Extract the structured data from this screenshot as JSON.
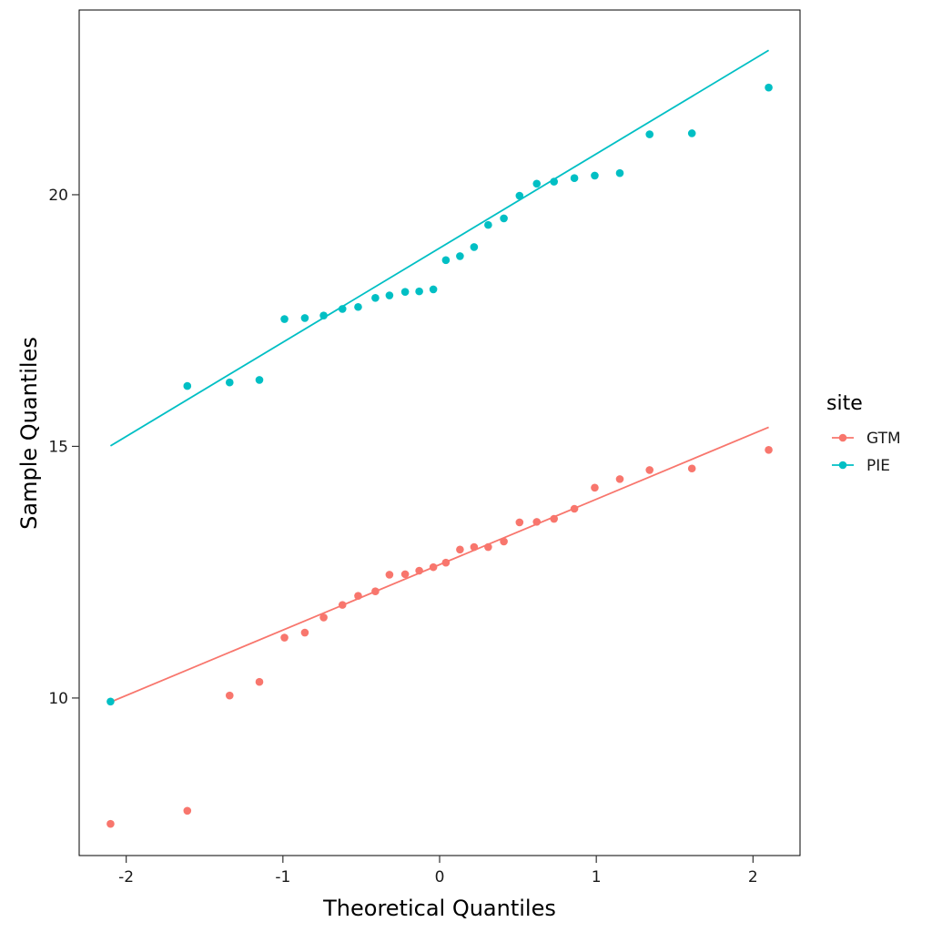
{
  "chart_data": {
    "type": "scatter",
    "xlabel": "Theoretical Quantiles",
    "ylabel": "Sample Quantiles",
    "xlim": [
      -2.3,
      2.3
    ],
    "ylim": [
      6.87,
      23.67
    ],
    "x_ticks": [
      -2,
      -1,
      0,
      1,
      2
    ],
    "x_tick_labels": [
      "-2",
      "-1",
      "0",
      "1",
      "2"
    ],
    "y_ticks": [
      10,
      15,
      20
    ],
    "y_tick_labels": [
      "10",
      "15",
      "20"
    ],
    "grid": false,
    "legend": {
      "title": "site",
      "position": "right"
    },
    "series": [
      {
        "name": "GTM",
        "color": "#F8766D",
        "points": [
          [
            -2.1,
            7.5
          ],
          [
            -1.61,
            7.76
          ],
          [
            -1.34,
            10.05
          ],
          [
            -1.15,
            10.32
          ],
          [
            -0.99,
            11.2
          ],
          [
            -0.86,
            11.3
          ],
          [
            -0.74,
            11.6
          ],
          [
            -0.62,
            11.85
          ],
          [
            -0.52,
            12.03
          ],
          [
            -0.41,
            12.12
          ],
          [
            -0.32,
            12.45
          ],
          [
            -0.22,
            12.46
          ],
          [
            -0.13,
            12.53
          ],
          [
            -0.04,
            12.6
          ],
          [
            0.04,
            12.69
          ],
          [
            0.13,
            12.95
          ],
          [
            0.22,
            13.0
          ],
          [
            0.31,
            13.0
          ],
          [
            0.41,
            13.11
          ],
          [
            0.51,
            13.49
          ],
          [
            0.62,
            13.5
          ],
          [
            0.73,
            13.56
          ],
          [
            0.86,
            13.76
          ],
          [
            0.99,
            14.18
          ],
          [
            1.15,
            14.35
          ],
          [
            1.34,
            14.53
          ],
          [
            1.61,
            14.56
          ],
          [
            2.1,
            14.93
          ]
        ],
        "line": [
          [
            -2.1,
            9.92
          ],
          [
            2.1,
            15.38
          ]
        ]
      },
      {
        "name": "PIE",
        "color": "#00BFC4",
        "points": [
          [
            -2.1,
            9.93
          ],
          [
            -1.61,
            16.2
          ],
          [
            -1.34,
            16.27
          ],
          [
            -1.15,
            16.32
          ],
          [
            -0.99,
            17.53
          ],
          [
            -0.86,
            17.55
          ],
          [
            -0.74,
            17.6
          ],
          [
            -0.62,
            17.73
          ],
          [
            -0.52,
            17.77
          ],
          [
            -0.41,
            17.95
          ],
          [
            -0.32,
            18.0
          ],
          [
            -0.22,
            18.07
          ],
          [
            -0.13,
            18.08
          ],
          [
            -0.04,
            18.12
          ],
          [
            0.04,
            18.7
          ],
          [
            0.13,
            18.78
          ],
          [
            0.22,
            18.96
          ],
          [
            0.31,
            19.4
          ],
          [
            0.41,
            19.53
          ],
          [
            0.51,
            19.98
          ],
          [
            0.62,
            20.22
          ],
          [
            0.73,
            20.26
          ],
          [
            0.86,
            20.33
          ],
          [
            0.99,
            20.38
          ],
          [
            1.15,
            20.43
          ],
          [
            1.34,
            21.2
          ],
          [
            1.61,
            21.22
          ],
          [
            2.1,
            22.13
          ]
        ],
        "line": [
          [
            -2.1,
            15.01
          ],
          [
            2.1,
            22.87
          ]
        ]
      }
    ]
  }
}
